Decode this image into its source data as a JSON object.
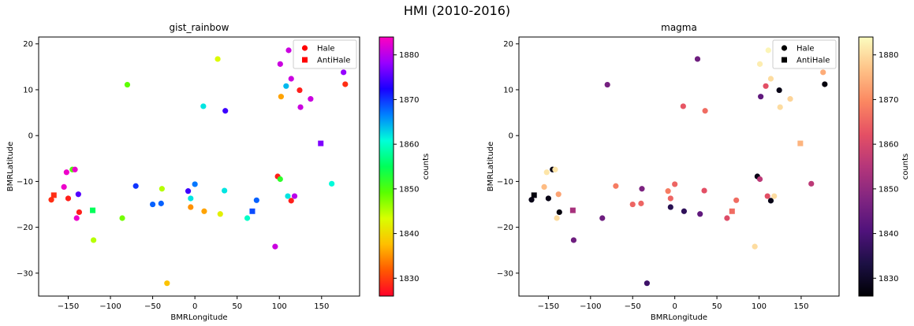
{
  "figure": {
    "title": "HMI (2010-2016)"
  },
  "chart_data": [
    {
      "type": "scatter",
      "title": "gist_rainbow",
      "xlabel": "BMRLongitude",
      "ylabel": "BMRLatitude",
      "xlim": [
        -185,
        195
      ],
      "ylim": [
        -35,
        21.5
      ],
      "xticks": [
        -150,
        -100,
        -50,
        0,
        50,
        100,
        150
      ],
      "yticks": [
        -30,
        -20,
        -10,
        0,
        10,
        20
      ],
      "grid": false,
      "legend": {
        "position": "top-right",
        "entries": [
          {
            "label": "Hale",
            "marker": "circle",
            "color": "#ff0000"
          },
          {
            "label": "AntiHale",
            "marker": "square",
            "color": "#ff0000"
          }
        ]
      },
      "colorbar": {
        "label": "counts",
        "colormap": "gist_rainbow",
        "range": [
          1826,
          1884
        ],
        "ticks": [
          1830,
          1840,
          1850,
          1860,
          1870,
          1880
        ]
      },
      "series": [
        {
          "name": "Hale",
          "marker": "circle",
          "points": [
            {
              "x": -170,
              "y": -14,
              "c": 1829
            },
            {
              "x": -155,
              "y": -11.2,
              "c": 1883
            },
            {
              "x": -150,
              "y": -13.7,
              "c": 1828
            },
            {
              "x": -152,
              "y": -8,
              "c": 1883
            },
            {
              "x": -145,
              "y": -7.4,
              "c": 1850
            },
            {
              "x": -142,
              "y": -7.4,
              "c": 1883
            },
            {
              "x": -140,
              "y": -18,
              "c": 1883
            },
            {
              "x": -138,
              "y": -12.8,
              "c": 1875
            },
            {
              "x": -137,
              "y": -16.7,
              "c": 1828
            },
            {
              "x": -120,
              "y": -22.8,
              "c": 1845
            },
            {
              "x": -86,
              "y": -18,
              "c": 1848
            },
            {
              "x": -80,
              "y": 11.1,
              "c": 1849
            },
            {
              "x": -70,
              "y": -11,
              "c": 1870
            },
            {
              "x": -50,
              "y": -15,
              "c": 1868
            },
            {
              "x": -40,
              "y": -14.8,
              "c": 1868
            },
            {
              "x": -39,
              "y": -11.6,
              "c": 1845
            },
            {
              "x": -33,
              "y": -32.2,
              "c": 1838
            },
            {
              "x": -8,
              "y": -12.1,
              "c": 1874
            },
            {
              "x": -5,
              "y": -13.7,
              "c": 1862
            },
            {
              "x": -5,
              "y": -15.6,
              "c": 1835
            },
            {
              "x": 0,
              "y": -10.6,
              "c": 1867
            },
            {
              "x": 10,
              "y": 6.4,
              "c": 1862
            },
            {
              "x": 11,
              "y": -16.5,
              "c": 1836
            },
            {
              "x": 27,
              "y": 16.7,
              "c": 1843
            },
            {
              "x": 30,
              "y": -17.1,
              "c": 1842
            },
            {
              "x": 35,
              "y": -12,
              "c": 1862
            },
            {
              "x": 36,
              "y": 5.4,
              "c": 1874
            },
            {
              "x": 62,
              "y": -18,
              "c": 1860
            },
            {
              "x": 73,
              "y": -14.1,
              "c": 1868
            },
            {
              "x": 95,
              "y": -24.2,
              "c": 1881
            },
            {
              "x": 98,
              "y": -8.9,
              "c": 1828
            },
            {
              "x": 101,
              "y": -9.5,
              "c": 1852
            },
            {
              "x": 101,
              "y": 15.6,
              "c": 1881
            },
            {
              "x": 102,
              "y": 8.5,
              "c": 1836
            },
            {
              "x": 108,
              "y": 10.8,
              "c": 1864
            },
            {
              "x": 110,
              "y": -13.2,
              "c": 1862
            },
            {
              "x": 111,
              "y": 18.6,
              "c": 1881
            },
            {
              "x": 114,
              "y": 12.4,
              "c": 1881
            },
            {
              "x": 114,
              "y": -14.2,
              "c": 1828
            },
            {
              "x": 118,
              "y": -13.2,
              "c": 1880
            },
            {
              "x": 124,
              "y": 9.9,
              "c": 1828
            },
            {
              "x": 125,
              "y": 6.2,
              "c": 1881
            },
            {
              "x": 137,
              "y": 8,
              "c": 1881
            },
            {
              "x": 162,
              "y": -10.5,
              "c": 1861
            },
            {
              "x": 176,
              "y": 13.8,
              "c": 1878
            },
            {
              "x": 178,
              "y": 11.2,
              "c": 1829
            }
          ]
        },
        {
          "name": "AntiHale",
          "marker": "square",
          "points": [
            {
              "x": -167,
              "y": -13,
              "c": 1829
            },
            {
              "x": -121,
              "y": -16.3,
              "c": 1855
            },
            {
              "x": 68,
              "y": -16.5,
              "c": 1869
            },
            {
              "x": 149,
              "y": -1.7,
              "c": 1877
            }
          ]
        }
      ]
    },
    {
      "type": "scatter",
      "title": "magma",
      "xlabel": "BMRLongitude",
      "ylabel": "BMRLatitude",
      "xlim": [
        -185,
        195
      ],
      "ylim": [
        -35,
        21.5
      ],
      "xticks": [
        -150,
        -100,
        -50,
        0,
        50,
        100,
        150
      ],
      "yticks": [
        -30,
        -20,
        -10,
        0,
        10,
        20
      ],
      "grid": false,
      "legend": {
        "position": "top-right",
        "entries": [
          {
            "label": "Hale",
            "marker": "circle",
            "color": "#000000"
          },
          {
            "label": "AntiHale",
            "marker": "square",
            "color": "#000000"
          }
        ]
      },
      "colorbar": {
        "label": "counts",
        "colormap": "magma",
        "range": [
          1826,
          1884
        ],
        "ticks": [
          1830,
          1840,
          1850,
          1860,
          1870,
          1880
        ]
      },
      "series": [
        {
          "name": "Hale",
          "marker": "circle",
          "points": [
            {
              "x": -170,
              "y": -14,
              "c": 1828
            },
            {
              "x": -155,
              "y": -11.2,
              "c": 1876
            },
            {
              "x": -150,
              "y": -13.7,
              "c": 1828
            },
            {
              "x": -152,
              "y": -8,
              "c": 1881
            },
            {
              "x": -145,
              "y": -7.4,
              "c": 1828
            },
            {
              "x": -142,
              "y": -7.4,
              "c": 1881
            },
            {
              "x": -140,
              "y": -18,
              "c": 1880
            },
            {
              "x": -138,
              "y": -12.8,
              "c": 1873
            },
            {
              "x": -137,
              "y": -16.7,
              "c": 1827
            },
            {
              "x": -120,
              "y": -22.8,
              "c": 1845
            },
            {
              "x": -86,
              "y": -18,
              "c": 1845
            },
            {
              "x": -80,
              "y": 11.1,
              "c": 1846
            },
            {
              "x": -70,
              "y": -11,
              "c": 1868
            },
            {
              "x": -50,
              "y": -15,
              "c": 1865
            },
            {
              "x": -40,
              "y": -14.8,
              "c": 1865
            },
            {
              "x": -39,
              "y": -11.6,
              "c": 1847
            },
            {
              "x": -33,
              "y": -32.2,
              "c": 1838
            },
            {
              "x": -8,
              "y": -12.1,
              "c": 1868
            },
            {
              "x": -5,
              "y": -13.7,
              "c": 1865
            },
            {
              "x": -5,
              "y": -15.6,
              "c": 1835
            },
            {
              "x": 0,
              "y": -10.6,
              "c": 1865
            },
            {
              "x": 10,
              "y": 6.4,
              "c": 1863
            },
            {
              "x": 11,
              "y": -16.5,
              "c": 1836
            },
            {
              "x": 27,
              "y": 16.7,
              "c": 1845
            },
            {
              "x": 30,
              "y": -17.1,
              "c": 1843
            },
            {
              "x": 35,
              "y": -12,
              "c": 1862
            },
            {
              "x": 36,
              "y": 5.4,
              "c": 1866
            },
            {
              "x": 62,
              "y": -18,
              "c": 1861
            },
            {
              "x": 73,
              "y": -14.1,
              "c": 1866
            },
            {
              "x": 95,
              "y": -24.2,
              "c": 1880
            },
            {
              "x": 98,
              "y": -8.9,
              "c": 1828
            },
            {
              "x": 101,
              "y": -9.5,
              "c": 1856
            },
            {
              "x": 101,
              "y": 15.6,
              "c": 1882
            },
            {
              "x": 102,
              "y": 8.5,
              "c": 1843
            },
            {
              "x": 108,
              "y": 10.8,
              "c": 1862
            },
            {
              "x": 110,
              "y": -13.2,
              "c": 1862
            },
            {
              "x": 111,
              "y": 18.6,
              "c": 1883
            },
            {
              "x": 114,
              "y": 12.4,
              "c": 1880
            },
            {
              "x": 114,
              "y": -14.2,
              "c": 1828
            },
            {
              "x": 118,
              "y": -13.2,
              "c": 1880
            },
            {
              "x": 124,
              "y": 9.9,
              "c": 1828
            },
            {
              "x": 125,
              "y": 6.2,
              "c": 1880
            },
            {
              "x": 137,
              "y": 8,
              "c": 1879
            },
            {
              "x": 162,
              "y": -10.5,
              "c": 1856
            },
            {
              "x": 176,
              "y": 13.8,
              "c": 1874
            },
            {
              "x": 178,
              "y": 11.2,
              "c": 1827
            }
          ]
        },
        {
          "name": "AntiHale",
          "marker": "square",
          "points": [
            {
              "x": -167,
              "y": -13,
              "c": 1827
            },
            {
              "x": -121,
              "y": -16.3,
              "c": 1853
            },
            {
              "x": 68,
              "y": -16.5,
              "c": 1866
            },
            {
              "x": 149,
              "y": -1.7,
              "c": 1875
            }
          ]
        }
      ]
    }
  ]
}
